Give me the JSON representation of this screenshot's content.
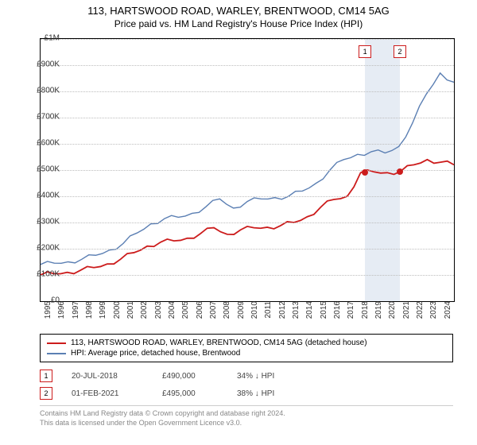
{
  "title1": "113, HARTSWOOD ROAD, WARLEY, BRENTWOOD, CM14 5AG",
  "title2": "Price paid vs. HM Land Registry's House Price Index (HPI)",
  "chart": {
    "type": "line",
    "ylim": [
      0,
      1000000
    ],
    "ytick_step": 100000,
    "y_ticks": [
      "£0",
      "£100K",
      "£200K",
      "£300K",
      "£400K",
      "£500K",
      "£600K",
      "£700K",
      "£800K",
      "£900K",
      "£1M"
    ],
    "x_years": [
      1995,
      1996,
      1997,
      1998,
      1999,
      2000,
      2001,
      2002,
      2003,
      2004,
      2005,
      2006,
      2007,
      2008,
      2009,
      2010,
      2011,
      2012,
      2013,
      2014,
      2015,
      2016,
      2017,
      2018,
      2019,
      2020,
      2021,
      2022,
      2023,
      2024
    ],
    "grid_color": "#bdbdbd",
    "background_color": "#ffffff",
    "band_color": "#dbe4f0",
    "series": [
      {
        "name": "HPI: Average price, detached house, Brentwood",
        "color": "#5b7fb3",
        "width": 1.4,
        "data": [
          140,
          145,
          150,
          160,
          175,
          195,
          220,
          260,
          295,
          315,
          320,
          335,
          360,
          390,
          355,
          380,
          390,
          395,
          400,
          420,
          450,
          500,
          540,
          560,
          570,
          565,
          590,
          680,
          790,
          870,
          835
        ]
      },
      {
        "name": "113, HARTSWOOD ROAD, WARLEY, BRENTWOOD, CM14 5AG (detached house)",
        "color": "#cc1c1c",
        "width": 1.8,
        "data": [
          100,
          105,
          110,
          118,
          128,
          142,
          160,
          185,
          210,
          225,
          230,
          240,
          258,
          280,
          255,
          272,
          280,
          282,
          288,
          300,
          322,
          358,
          388,
          400,
          490,
          493,
          490,
          495,
          520,
          540,
          530,
          520
        ]
      }
    ],
    "transactions": [
      {
        "n": "1",
        "year": 2018.55,
        "price": 490000,
        "date": "20-JUL-2018",
        "price_str": "£490,000",
        "hpi": "34% ↓ HPI"
      },
      {
        "n": "2",
        "year": 2021.08,
        "price": 495000,
        "date": "01-FEB-2021",
        "price_str": "£495,000",
        "hpi": "38% ↓ HPI"
      }
    ],
    "marker_border": "#cc1c1c",
    "dot_color": "#cc1c1c"
  },
  "legend": {
    "rows": [
      {
        "color": "#cc1c1c",
        "label": "113, HARTSWOOD ROAD, WARLEY, BRENTWOOD, CM14 5AG (detached house)"
      },
      {
        "color": "#5b7fb3",
        "label": "HPI: Average price, detached house, Brentwood"
      }
    ]
  },
  "footer": {
    "line1": "Contains HM Land Registry data © Crown copyright and database right 2024.",
    "line2": "This data is licensed under the Open Government Licence v3.0."
  }
}
